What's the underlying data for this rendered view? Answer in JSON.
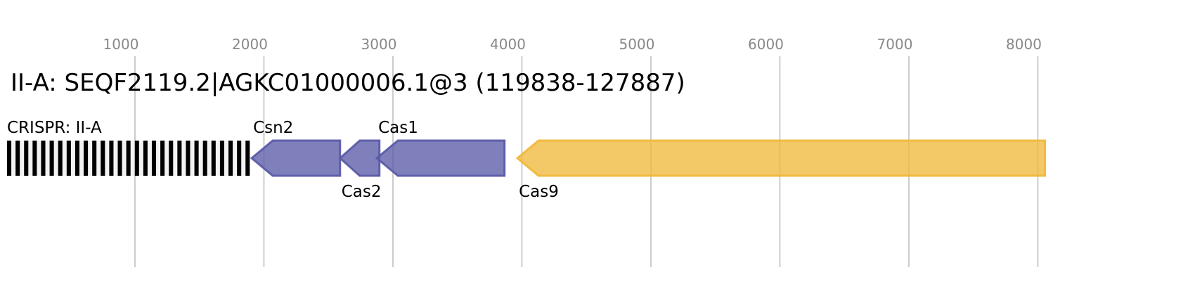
{
  "title": "II-A: SEQF2119.2|AGKC01000006.1@3 (119838-127887)",
  "axis": {
    "ticks": [
      1000,
      2000,
      3000,
      4000,
      5000,
      6000,
      7000,
      8000
    ],
    "tick_labels": [
      "1000",
      "2000",
      "3000",
      "4000",
      "5000",
      "6000",
      "7000",
      "8000"
    ]
  },
  "crispr": {
    "label": "CRISPR: II-A",
    "start": 0,
    "end": 1890,
    "repeats": 29
  },
  "genes": [
    {
      "name": "Csn2",
      "start": 1905,
      "end": 2590,
      "strand": "-",
      "color": "#5b5ba8",
      "label_pos": "above"
    },
    {
      "name": "Cas2",
      "start": 2590,
      "end": 2895,
      "strand": "-",
      "color": "#5b5ba8",
      "label_pos": "below"
    },
    {
      "name": "Cas1",
      "start": 2875,
      "end": 3865,
      "strand": "-",
      "color": "#5b5ba8",
      "label_pos": "above"
    },
    {
      "name": "Cas9",
      "start": 3965,
      "end": 8055,
      "strand": "-",
      "color": "#f0b83c",
      "label_pos": "below"
    }
  ]
}
